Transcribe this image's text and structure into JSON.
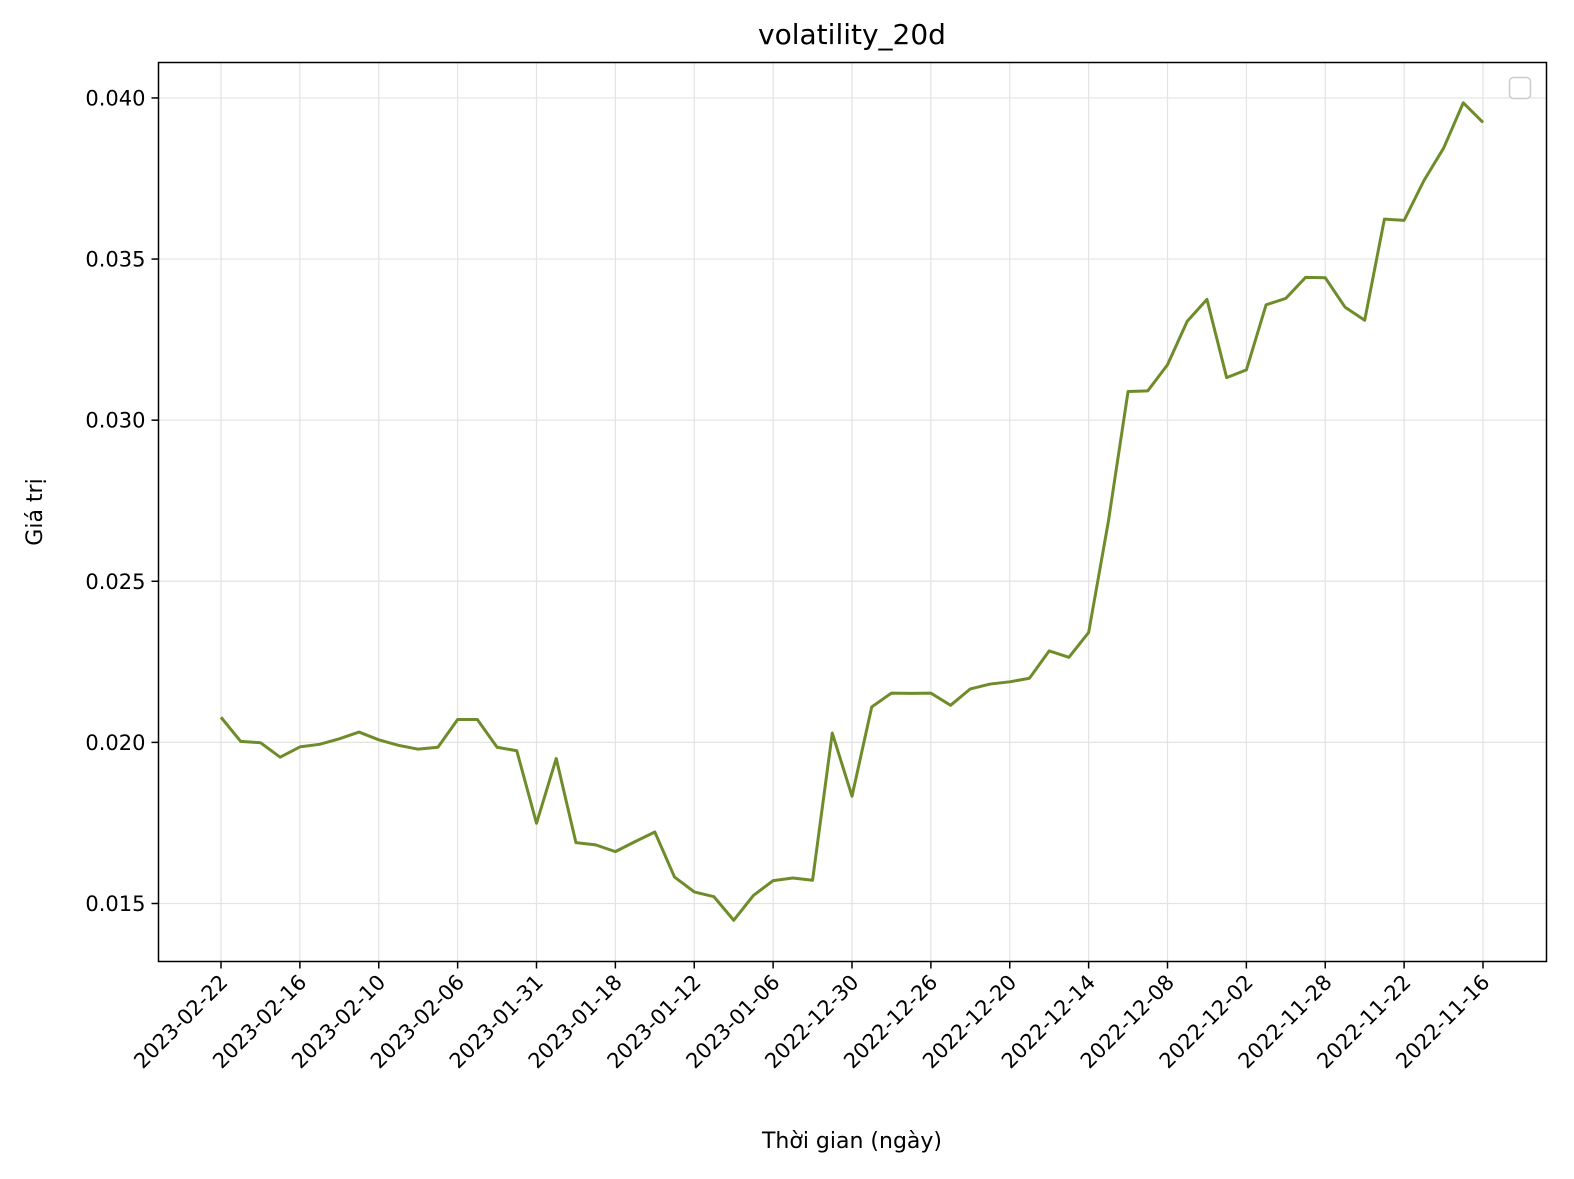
{
  "chart_data": {
    "type": "line",
    "title": "volatility_20d",
    "xlabel": "Thời gian (ngày)",
    "ylabel": "Giá trị",
    "x_ticks": [
      "2023-02-22",
      "2023-02-16",
      "2023-02-10",
      "2023-02-06",
      "2023-01-31",
      "2023-01-18",
      "2023-01-12",
      "2023-01-06",
      "2022-12-30",
      "2022-12-26",
      "2022-12-20",
      "2022-12-14",
      "2022-12-08",
      "2022-12-02",
      "2022-11-28",
      "2022-11-22",
      "2022-11-16"
    ],
    "y_ticks": [
      "0.015",
      "0.020",
      "0.025",
      "0.030",
      "0.035",
      "0.040"
    ],
    "ylim": [
      0.0132,
      0.0411
    ],
    "grid": true,
    "legend": "top-right",
    "color": "#6f8c2a",
    "series": [
      {
        "values": [
          0.02078,
          0.02003,
          0.01999,
          0.01954,
          0.01986,
          0.01994,
          0.02011,
          0.02032,
          0.02008,
          0.01991,
          0.01979,
          0.01985,
          0.02071,
          0.02071,
          0.01985,
          0.01974,
          0.01749,
          0.0195,
          0.01689,
          0.01682,
          0.01661,
          0.01692,
          0.01722,
          0.01582,
          0.01536,
          0.01521,
          0.01448,
          0.01525,
          0.01571,
          0.01579,
          0.01572,
          0.02029,
          0.01833,
          0.0211,
          0.02153,
          0.02152,
          0.02153,
          0.02115,
          0.02166,
          0.02181,
          0.02188,
          0.02199,
          0.02284,
          0.02264,
          0.02341,
          0.02685,
          0.03089,
          0.03091,
          0.03172,
          0.03307,
          0.03375,
          0.03132,
          0.03156,
          0.03358,
          0.03378,
          0.03443,
          0.03442,
          0.03351,
          0.0331,
          0.03624,
          0.0362,
          0.03743,
          0.03844,
          0.03985,
          0.03924
        ]
      }
    ]
  }
}
